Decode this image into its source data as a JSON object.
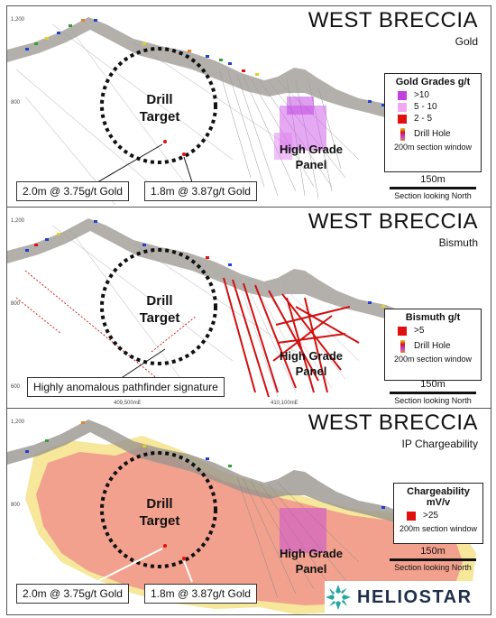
{
  "panel1": {
    "title": "WEST BRECCIA",
    "subtitle": "Gold",
    "drill_target": [
      "Drill",
      "Target"
    ],
    "high_grade": [
      "High Grade",
      "Panel"
    ],
    "callout_left": "2.0m @ 3.75g/t Gold",
    "callout_right": "1.8m @ 3.87g/t Gold",
    "legend": {
      "title": "Gold Grades g/t",
      "rows": [
        {
          "label": ">10",
          "color": "#c040e0"
        },
        {
          "label": "5  - 10",
          "color": "#f0a8f0"
        },
        {
          "label": "2  - 5",
          "color": "#e01010"
        }
      ],
      "drill_hole": "Drill Hole",
      "window": "200m section window"
    },
    "scale": {
      "value": "150m",
      "label": "Section looking North"
    },
    "elev": [
      "1,200",
      "800"
    ]
  },
  "panel2": {
    "title": "WEST BRECCIA",
    "subtitle": "Bismuth",
    "drill_target": [
      "Drill",
      "Target"
    ],
    "high_grade": [
      "High Grade",
      "Panel"
    ],
    "callout": "Highly anomalous pathfinder signature",
    "legend": {
      "title": "Bismuth g/t",
      "rows": [
        {
          "label": ">5",
          "color": "#e01010"
        }
      ],
      "drill_hole": "Drill Hole",
      "window": "200m section window"
    },
    "scale": {
      "value": "150m",
      "label": "Section looking North"
    },
    "elev": [
      "1,200",
      "800",
      "600"
    ],
    "eastings": [
      "409,500mE",
      "410,100mE"
    ]
  },
  "panel3": {
    "title": "WEST BRECCIA",
    "subtitle": "IP Chargeability",
    "drill_target": [
      "Drill",
      "Target"
    ],
    "high_grade": [
      "High Grade",
      "Panel"
    ],
    "callout_left": "2.0m @ 3.75g/t Gold",
    "callout_right": "1.8m @ 3.87g/t Gold",
    "legend": {
      "title_line1": "Chargeability",
      "title_line2": "mV/v",
      "rows": [
        {
          "label": ">25",
          "color": "#e01010"
        }
      ],
      "window": "200m section window"
    },
    "scale": {
      "value": "150m",
      "label": "Section looking North"
    },
    "elev": [
      "1,200",
      "800"
    ]
  },
  "logo": {
    "text": "HELIOSTAR"
  }
}
